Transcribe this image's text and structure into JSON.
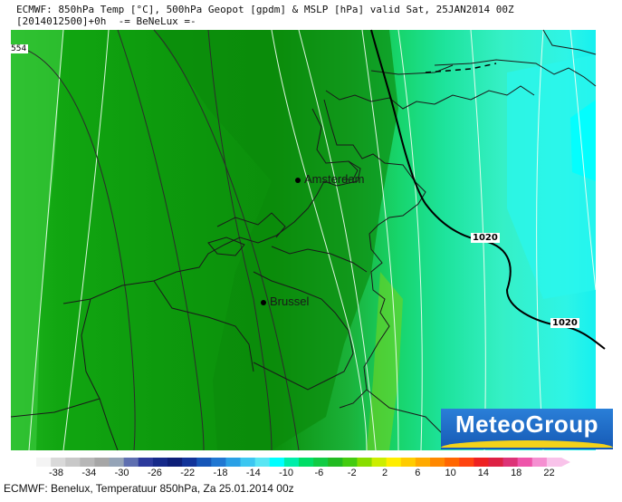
{
  "header": {
    "line1": "ECMWF: 850hPa Temp [°C], 500hPa Geopot [gpdm] & MSLP [hPa] valid Sat, 25JAN2014 00Z",
    "line2": "[2014012500]+0h  -= BeNeLux =-"
  },
  "contour_label": "554",
  "cities": [
    {
      "name": "Amsterdam"
    },
    {
      "name": "Brussel"
    }
  ],
  "isobar_labels": [
    "1020",
    "1020"
  ],
  "logo": {
    "text": "MeteoGroup"
  },
  "legend": {
    "ticks": [
      "-38",
      "-34",
      "-30",
      "-26",
      "-22",
      "-18",
      "-14",
      "-10",
      "-6",
      "-2",
      "2",
      "6",
      "10",
      "14",
      "18",
      "22"
    ],
    "colors": [
      "#f4f4f4",
      "#d9d9d9",
      "#c8c8c8",
      "#b7b7b7",
      "#a6a6a6",
      "#95a4b7",
      "#5e6fb0",
      "#2c3a9c",
      "#162a8a",
      "#0d1f78",
      "#113399",
      "#1656b8",
      "#1f77d2",
      "#2aa0e6",
      "#3cc7f1",
      "#59e6f4",
      "#00ffff",
      "#00eeaa",
      "#00dd66",
      "#11cc44",
      "#22bb22",
      "#44cc11",
      "#88dd00",
      "#ccee00",
      "#ffee00",
      "#ffcc00",
      "#ffaa00",
      "#ff8800",
      "#ff6600",
      "#ff4411",
      "#ee2222",
      "#dd2244",
      "#dd3377",
      "#ee55aa",
      "#f58fd1",
      "#f9c3ea"
    ]
  },
  "caption": "ECMWF: Benelux, Temperatuur 850hPa, Za 25.01.2014 00z"
}
